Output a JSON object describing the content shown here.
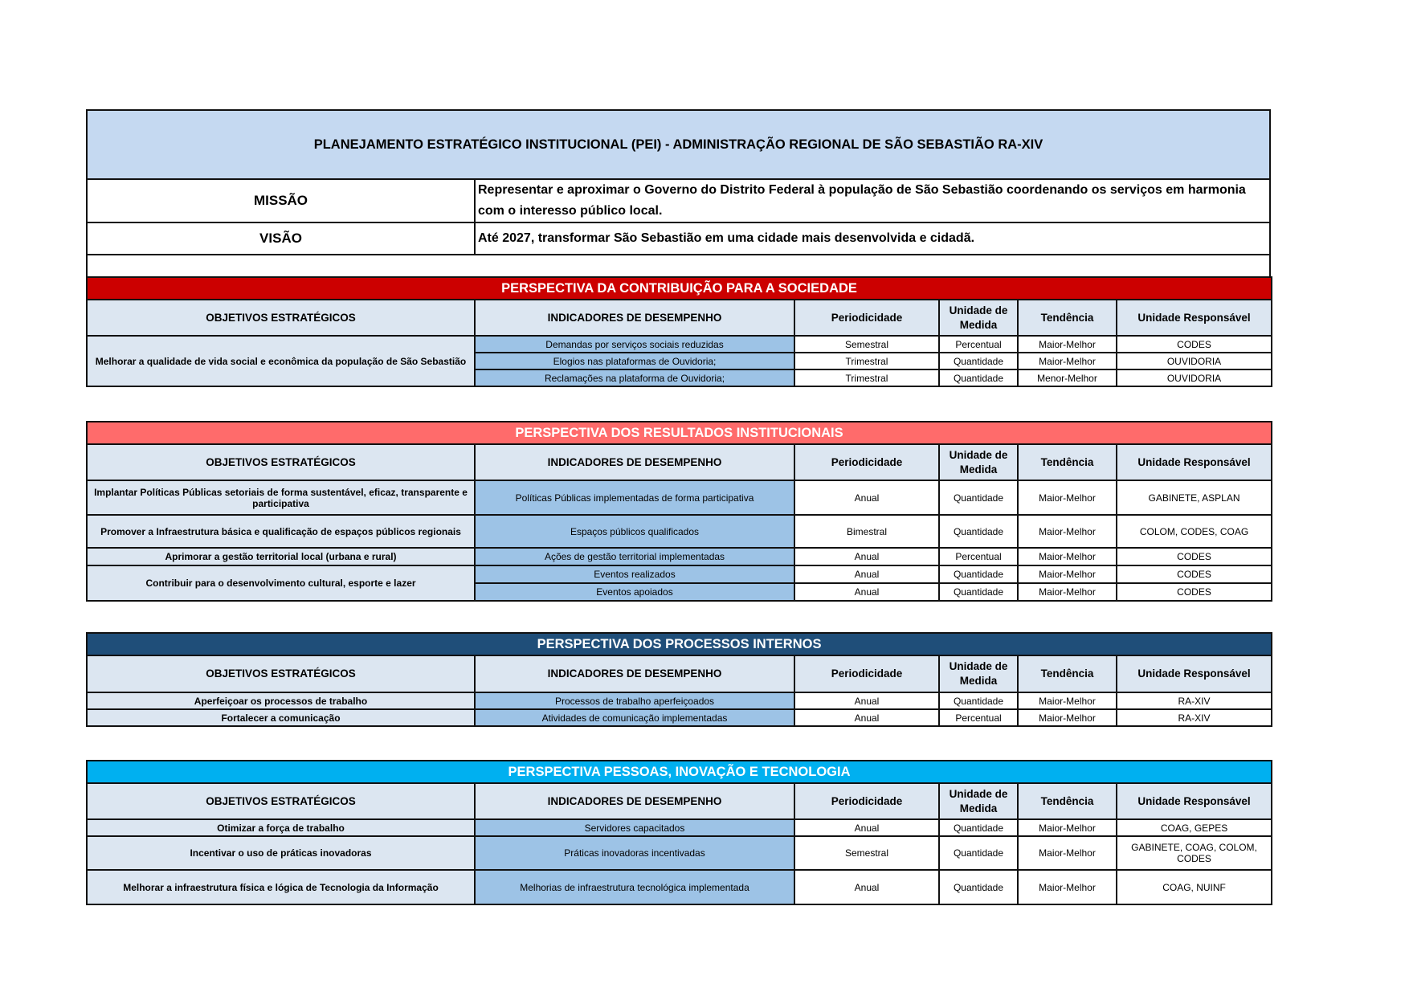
{
  "title": "PLANEJAMENTO ESTRATÉGICO INSTITUCIONAL (PEI) - ADMINISTRAÇÃO REGIONAL DE SÃO SEBASTIÃO RA-XIV",
  "missao": {
    "label": "MISSÃO",
    "text": "Representar e aproximar o Governo do Distrito Federal à população de São Sebastião coordenando os serviços em harmonia com o interesso público local."
  },
  "visao": {
    "label": "VISÃO",
    "text": "Até 2027, transformar São Sebastião em uma cidade mais desenvolvida e cidadã."
  },
  "columns": [
    "OBJETIVOS ESTRATÉGICOS",
    "INDICADORES DE DESEMPENHO",
    "Periodicidade",
    "Unidade de Medida",
    "Tendência",
    "Unidade Responsável"
  ],
  "colors": {
    "title_bg": "#c5d9f1",
    "header_bg": "#dce6f1",
    "indicator_bg": "#9dc3e6"
  },
  "sections": [
    {
      "title": "PERSPECTIVA DA CONTRIBUIÇÃO PARA A SOCIEDADE",
      "color": "#cc0000",
      "objectives": [
        {
          "name": "Melhorar a qualidade de vida social e econômica da população de São Sebastião",
          "indicators": [
            {
              "name": "Demandas por serviços sociais reduzidas",
              "periodicidade": "Semestral",
              "unidade": "Percentual",
              "tendencia": "Maior-Melhor",
              "responsavel": "CODES"
            },
            {
              "name": "Elogios nas plataformas de Ouvidoria;",
              "periodicidade": "Trimestral",
              "unidade": "Quantidade",
              "tendencia": "Maior-Melhor",
              "responsavel": "OUVIDORIA"
            },
            {
              "name": "Reclamações na plataforma de Ouvidoria;",
              "periodicidade": "Trimestral",
              "unidade": "Quantidade",
              "tendencia": "Menor-Melhor",
              "responsavel": "OUVIDORIA"
            }
          ]
        }
      ]
    },
    {
      "title": "PERSPECTIVA DOS RESULTADOS INSTITUCIONAIS",
      "color": "#ff6b6b",
      "objectives": [
        {
          "name": "Implantar Políticas Públicas setoriais de forma sustentável, eficaz, transparente e participativa",
          "indicators": [
            {
              "name": "Políticas Públicas implementadas de forma participativa",
              "periodicidade": "Anual",
              "unidade": "Quantidade",
              "tendencia": "Maior-Melhor",
              "responsavel": "GABINETE, ASPLAN"
            }
          ]
        },
        {
          "name": "Promover a Infraestrutura básica e qualificação de espaços públicos regionais",
          "indicators": [
            {
              "name": "Espaços públicos qualificados",
              "periodicidade": "Bimestral",
              "unidade": "Quantidade",
              "tendencia": "Maior-Melhor",
              "responsavel": "COLOM, CODES, COAG"
            }
          ]
        },
        {
          "name": "Aprimorar a gestão territorial local (urbana e rural)",
          "indicators": [
            {
              "name": "Ações de gestão territorial implementadas",
              "periodicidade": "Anual",
              "unidade": "Percentual",
              "tendencia": "Maior-Melhor",
              "responsavel": "CODES"
            }
          ]
        },
        {
          "name": "Contribuir para o desenvolvimento cultural, esporte e lazer",
          "indicators": [
            {
              "name": "Eventos realizados",
              "periodicidade": "Anual",
              "unidade": "Quantidade",
              "tendencia": "Maior-Melhor",
              "responsavel": "CODES"
            },
            {
              "name": "Eventos apoiados",
              "periodicidade": "Anual",
              "unidade": "Quantidade",
              "tendencia": "Maior-Melhor",
              "responsavel": "CODES"
            }
          ]
        }
      ]
    },
    {
      "title": "PERSPECTIVA DOS PROCESSOS INTERNOS",
      "color": "#1f4e79",
      "objectives": [
        {
          "name": "Aperfeiçoar os processos de trabalho",
          "indicators": [
            {
              "name": "Processos de trabalho aperfeiçoados",
              "periodicidade": "Anual",
              "unidade": "Quantidade",
              "tendencia": "Maior-Melhor",
              "responsavel": "RA-XIV"
            }
          ]
        },
        {
          "name": "Fortalecer a comunicação",
          "indicators": [
            {
              "name": "Atividades de comunicação implementadas",
              "periodicidade": "Anual",
              "unidade": "Percentual",
              "tendencia": "Maior-Melhor",
              "responsavel": "RA-XIV"
            }
          ]
        }
      ]
    },
    {
      "title": "PERSPECTIVA PESSOAS, INOVAÇÃO E TECNOLOGIA",
      "color": "#00b0f0",
      "objectives": [
        {
          "name": "Otimizar a força de trabalho",
          "indicators": [
            {
              "name": "Servidores capacitados",
              "periodicidade": "Anual",
              "unidade": "Quantidade",
              "tendencia": "Maior-Melhor",
              "responsavel": "COAG, GEPES"
            }
          ]
        },
        {
          "name": "Incentivar o uso de práticas inovadoras",
          "indicators": [
            {
              "name": "Práticas inovadoras incentivadas",
              "periodicidade": "Semestral",
              "unidade": "Quantidade",
              "tendencia": "Maior-Melhor",
              "responsavel": "GABINETE, COAG, COLOM, CODES"
            }
          ]
        },
        {
          "name": "Melhorar a infraestrutura física e lógica de Tecnologia da Informação",
          "indicators": [
            {
              "name": "Melhorias de infraestrutura tecnológica implementada",
              "periodicidade": "Anual",
              "unidade": "Quantidade",
              "tendencia": "Maior-Melhor",
              "responsavel": "COAG, NUINF"
            }
          ]
        }
      ]
    }
  ]
}
